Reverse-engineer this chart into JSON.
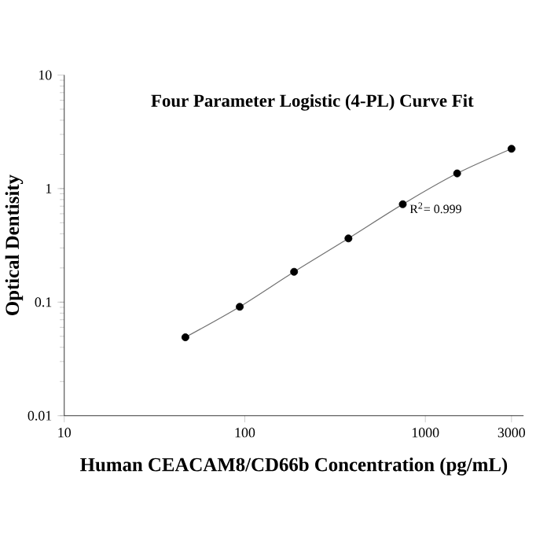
{
  "chart_data": {
    "type": "scatter",
    "title": "Four Parameter Logistic (4-PL) Curve Fit",
    "xlabel": "Human CEACAM8/CD66b Concentration (pg/mL)",
    "ylabel": "Optical Dentisity",
    "x": [
      46.875,
      93.75,
      187.5,
      375,
      750,
      1500,
      3000
    ],
    "series": [
      {
        "color": "#000000",
        "marker": "circle",
        "values": [
          0.049,
          0.091,
          0.185,
          0.364,
          0.728,
          1.36,
          2.24
        ]
      },
      {
        "type": "line",
        "color": "#707070",
        "marker": "none",
        "values": [
          0.049,
          0.091,
          0.185,
          0.364,
          0.728,
          1.36,
          2.24
        ]
      }
    ],
    "log": "xy",
    "xlim": [
      10,
      3500
    ],
    "ylim": [
      0.01,
      10
    ],
    "xticks": [
      10,
      100,
      1000,
      3000
    ],
    "yticks": [
      0.01,
      0.1,
      1,
      10
    ],
    "annotations": [
      "R$^{2}$= 0.999"
    ],
    "grid": false
  }
}
